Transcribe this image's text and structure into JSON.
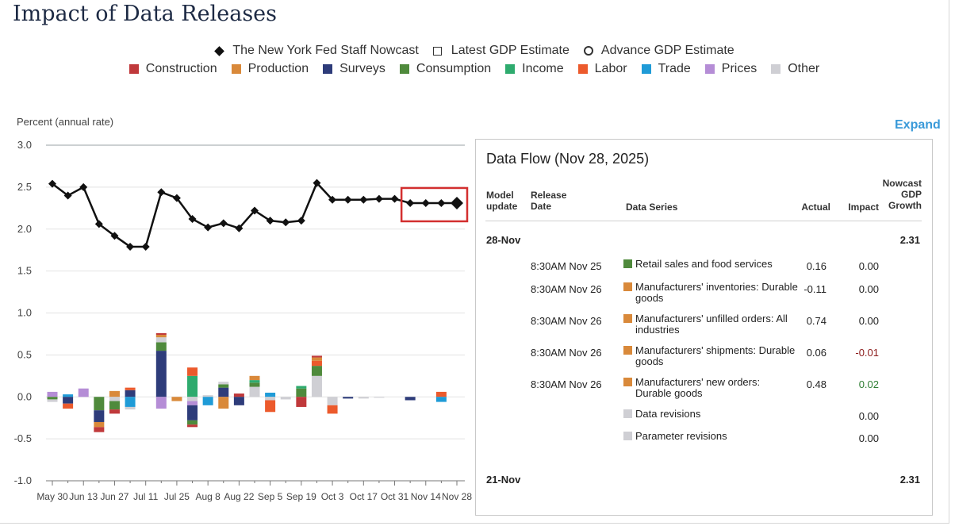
{
  "title": "Impact of Data Releases",
  "legend_lines": [
    {
      "label": "The New York Fed Staff Nowcast",
      "symbol": "diamond-icon"
    },
    {
      "label": "Latest GDP Estimate",
      "symbol": "square-icon"
    },
    {
      "label": "Advance GDP Estimate",
      "symbol": "circle-icon"
    }
  ],
  "legend_categories": [
    {
      "label": "Construction",
      "color": "#c0393b"
    },
    {
      "label": "Production",
      "color": "#d9893a"
    },
    {
      "label": "Surveys",
      "color": "#2e3c7a"
    },
    {
      "label": "Consumption",
      "color": "#4f8a3c"
    },
    {
      "label": "Income",
      "color": "#2eab6e"
    },
    {
      "label": "Labor",
      "color": "#ec5a2c"
    },
    {
      "label": "Trade",
      "color": "#1f9bd7"
    },
    {
      "label": "Prices",
      "color": "#b58dd6"
    },
    {
      "label": "Other",
      "color": "#cfcfd4"
    }
  ],
  "y_unit_label": "Percent (annual rate)",
  "expand_label": "Expand",
  "chart_data": {
    "type": "line+stacked-bar",
    "ylabel": "Percent (annual rate)",
    "ylim": [
      -1.0,
      3.0
    ],
    "yticks": [
      "3.0",
      "2.5",
      "2.0",
      "1.5",
      "1.0",
      "0.5",
      "0.0",
      "-0.5",
      "-1.0"
    ],
    "ytick_values": [
      3.0,
      2.5,
      2.0,
      1.5,
      1.0,
      0.5,
      0.0,
      -0.5,
      -1.0
    ],
    "xtick_labels": [
      "May 30",
      "Jun 13",
      "Jun 27",
      "Jul 11",
      "Jul 25",
      "Aug 8",
      "Aug 22",
      "Sep 5",
      "Sep 19",
      "Oct 3",
      "Oct 17",
      "Oct 31",
      "Nov 14",
      "Nov 28"
    ],
    "nowcast_series": {
      "name": "The New York Fed Staff Nowcast",
      "values": [
        2.54,
        2.4,
        2.5,
        2.06,
        1.92,
        1.79,
        1.79,
        2.44,
        2.37,
        2.12,
        2.02,
        2.07,
        2.01,
        2.22,
        2.1,
        2.08,
        2.1,
        2.55,
        2.35,
        2.35,
        2.35,
        2.36,
        2.36,
        2.31,
        2.31,
        2.31,
        2.31
      ]
    },
    "highlighted_range": "Nov 14 – Nov 28",
    "impact_bars": [
      [
        [
          "Prices",
          0.06
        ],
        [
          "Consumption",
          -0.03
        ],
        [
          "Other",
          -0.03
        ]
      ],
      [
        [
          "Trade",
          0.03
        ],
        [
          "Surveys",
          -0.08
        ],
        [
          "Labor",
          -0.06
        ]
      ],
      [
        [
          "Prices",
          0.1
        ]
      ],
      [
        [
          "Consumption",
          -0.16
        ],
        [
          "Surveys",
          -0.14
        ],
        [
          "Production",
          -0.06
        ],
        [
          "Construction",
          -0.06
        ]
      ],
      [
        [
          "Production",
          0.07
        ],
        [
          "Other",
          -0.05
        ],
        [
          "Consumption",
          -0.1
        ],
        [
          "Construction",
          -0.05
        ]
      ],
      [
        [
          "Surveys",
          0.08
        ],
        [
          "Labor",
          0.03
        ],
        [
          "Trade",
          -0.12
        ],
        [
          "Other",
          -0.03
        ]
      ],
      [],
      [
        [
          "Surveys",
          0.55
        ],
        [
          "Consumption",
          0.1
        ],
        [
          "Other",
          0.06
        ],
        [
          "Production",
          0.03
        ],
        [
          "Construction",
          0.02
        ],
        [
          "Prices",
          -0.14
        ]
      ],
      [
        [
          "Production",
          -0.05
        ]
      ],
      [
        [
          "Income",
          0.25
        ],
        [
          "Labor",
          0.1
        ],
        [
          "Other",
          -0.05
        ],
        [
          "Prices",
          -0.05
        ],
        [
          "Surveys",
          -0.18
        ],
        [
          "Consumption",
          -0.05
        ],
        [
          "Construction",
          -0.03
        ]
      ],
      [
        [
          "Other",
          0.02
        ],
        [
          "Trade",
          -0.1
        ]
      ],
      [
        [
          "Surveys",
          0.11
        ],
        [
          "Consumption",
          0.04
        ],
        [
          "Other",
          0.03
        ],
        [
          "Production",
          -0.14
        ]
      ],
      [
        [
          "Construction",
          0.04
        ],
        [
          "Surveys",
          -0.1
        ]
      ],
      [
        [
          "Other",
          0.12
        ],
        [
          "Consumption",
          0.05
        ],
        [
          "Income",
          0.03
        ],
        [
          "Production",
          0.05
        ]
      ],
      [
        [
          "Trade",
          0.05
        ],
        [
          "Other",
          -0.04
        ],
        [
          "Labor",
          -0.14
        ]
      ],
      [
        [
          "Other",
          -0.03
        ]
      ],
      [
        [
          "Consumption",
          0.1
        ],
        [
          "Income",
          0.03
        ],
        [
          "Construction",
          -0.12
        ]
      ],
      [
        [
          "Other",
          0.25
        ],
        [
          "Consumption",
          0.12
        ],
        [
          "Labor",
          0.06
        ],
        [
          "Production",
          0.04
        ],
        [
          "Construction",
          0.02
        ]
      ],
      [
        [
          "Other",
          -0.1
        ],
        [
          "Labor",
          -0.1
        ]
      ],
      [
        [
          "Surveys",
          -0.02
        ]
      ],
      [
        [
          "Other",
          -0.02
        ]
      ],
      [
        [
          "Other",
          -0.01
        ]
      ],
      [],
      [
        [
          "Surveys",
          -0.04
        ]
      ],
      [],
      [
        [
          "Labor",
          0.06
        ],
        [
          "Trade",
          -0.06
        ]
      ],
      []
    ]
  },
  "data_flow": {
    "title": "Data Flow (Nov 28, 2025)",
    "columns": {
      "model_update": "Model update",
      "release_date": "Release Date",
      "data_series": "Data Series",
      "actual": "Actual",
      "impact": "Impact",
      "nowcast": "Nowcast GDP Growth"
    },
    "groups": [
      {
        "date": "28-Nov",
        "nowcast": "2.31",
        "rows": [
          {
            "release": "8:30AM Nov 25",
            "series": "Retail sales and food services",
            "category": "Consumption",
            "actual": "0.16",
            "impact": "0.00"
          },
          {
            "release": "8:30AM Nov 26",
            "series": "Manufacturers' inventories: Durable goods",
            "category": "Production",
            "actual": "-0.11",
            "impact": "0.00"
          },
          {
            "release": "8:30AM Nov 26",
            "series": "Manufacturers' unfilled orders: All industries",
            "category": "Production",
            "actual": "0.74",
            "impact": "0.00"
          },
          {
            "release": "8:30AM Nov 26",
            "series": "Manufacturers' shipments: Durable goods",
            "category": "Production",
            "actual": "0.06",
            "impact": "-0.01"
          },
          {
            "release": "8:30AM Nov 26",
            "series": "Manufacturers' new orders: Durable goods",
            "category": "Production",
            "actual": "0.48",
            "impact": "0.02"
          },
          {
            "release": "",
            "series": "Data revisions",
            "category": "Other",
            "actual": "",
            "impact": "0.00"
          },
          {
            "release": "",
            "series": "Parameter revisions",
            "category": "Other",
            "actual": "",
            "impact": "0.00"
          }
        ]
      },
      {
        "date": "21-Nov",
        "nowcast": "2.31",
        "rows": []
      }
    ]
  }
}
